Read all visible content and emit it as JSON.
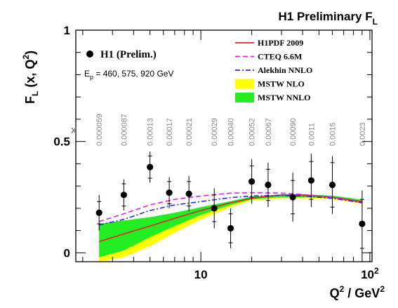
{
  "chart_data": {
    "type": "scatter",
    "title": "H1 Preliminary F",
    "title_sub": "L",
    "ylabel": {
      "main": "F",
      "sub": "L",
      "rest": " (x, Q",
      "sup": "2",
      "close": ")"
    },
    "xlabel": {
      "main": "Q",
      "sup1": "2",
      "rest": " / GeV",
      "sup2": "2"
    },
    "x_scale": "log",
    "xlim": [
      1.82,
      103
    ],
    "ylim": [
      -0.04,
      1.0
    ],
    "y_ticks": [
      {
        "value": 0,
        "label": "0"
      },
      {
        "value": 0.5,
        "label": "0.5"
      },
      {
        "value": 1,
        "label": "1"
      }
    ],
    "x_tick_labels": [
      {
        "value": 10,
        "label": "10"
      },
      {
        "value": 100,
        "label": "10",
        "sup": "2"
      }
    ],
    "x_major_ticks": [
      10,
      100
    ],
    "x_minor_ticks": [
      2,
      3,
      4,
      5,
      6,
      7,
      8,
      9,
      20,
      30,
      40,
      50,
      60,
      70,
      80,
      90
    ],
    "x_values_header": "x",
    "legend_placement": "top-right",
    "legend": [
      {
        "name": "H1PDF 2009",
        "style": "line",
        "color": "#e8202a",
        "dash": ""
      },
      {
        "name": "CTEQ 6.6M",
        "style": "line",
        "color": "#e020d8",
        "dash": "7,4"
      },
      {
        "name": "Alekhin NNLO",
        "style": "line",
        "color": "#2a2ad0",
        "dash": "7,3,2,3"
      },
      {
        "name": "MSTW NLO",
        "style": "band",
        "color": "#ffff00"
      },
      {
        "name": "MSTW NNLO",
        "style": "band",
        "color": "#22ee22"
      }
    ],
    "data_legend": {
      "label": "H1 (Prelim.)"
    },
    "energy_note": {
      "main": "E",
      "sub": "p",
      "rest": " = 460, 575, 920 GeV"
    },
    "series": [
      {
        "name": "H1 (Prelim.)",
        "points": [
          {
            "q2": 2.5,
            "x": "0.000059",
            "fl": 0.18,
            "stat": 0.05,
            "tot": 0.08
          },
          {
            "q2": 3.5,
            "x": "0.000087",
            "fl": 0.26,
            "stat": 0.05,
            "tot": 0.07
          },
          {
            "q2": 5.0,
            "x": "0.00013",
            "fl": 0.385,
            "stat": 0.05,
            "tot": 0.07
          },
          {
            "q2": 6.5,
            "x": "0.00017",
            "fl": 0.27,
            "stat": 0.05,
            "tot": 0.07
          },
          {
            "q2": 8.5,
            "x": "0.00021",
            "fl": 0.265,
            "stat": 0.055,
            "tot": 0.08
          },
          {
            "q2": 12.0,
            "x": "0.00029",
            "fl": 0.2,
            "stat": 0.06,
            "tot": 0.09
          },
          {
            "q2": 15.0,
            "x": "0.00040",
            "fl": 0.11,
            "stat": 0.065,
            "tot": 0.09
          },
          {
            "q2": 20.0,
            "x": "0.00052",
            "fl": 0.32,
            "stat": 0.07,
            "tot": 0.1
          },
          {
            "q2": 25.0,
            "x": "0.00067",
            "fl": 0.305,
            "stat": 0.07,
            "tot": 0.1
          },
          {
            "q2": 35.0,
            "x": "0.00090",
            "fl": 0.25,
            "stat": 0.075,
            "tot": 0.11
          },
          {
            "q2": 45.0,
            "x": "0.0011",
            "fl": 0.325,
            "stat": 0.085,
            "tot": 0.12
          },
          {
            "q2": 60.0,
            "x": "0.0015",
            "fl": 0.305,
            "stat": 0.1,
            "tot": 0.13
          },
          {
            "q2": 90.0,
            "x": "0.0023",
            "fl": 0.13,
            "stat": 0.11,
            "tot": 0.15
          }
        ]
      }
    ],
    "curves": [
      {
        "name": "H1PDF 2009",
        "q2": [
          2.5,
          3.5,
          5,
          7,
          10,
          15,
          20,
          30,
          40,
          60,
          90
        ],
        "fl": [
          0.05,
          0.085,
          0.12,
          0.155,
          0.19,
          0.225,
          0.245,
          0.26,
          0.26,
          0.25,
          0.23
        ]
      },
      {
        "name": "CTEQ 6.6M",
        "q2": [
          2.5,
          3.5,
          5,
          7,
          10,
          15,
          20,
          30,
          40,
          60,
          90
        ],
        "fl": [
          0.14,
          0.175,
          0.215,
          0.24,
          0.255,
          0.268,
          0.27,
          0.268,
          0.262,
          0.25,
          0.225
        ]
      },
      {
        "name": "Alekhin NNLO",
        "q2": [
          2.5,
          3.5,
          5,
          7,
          10,
          15,
          20,
          30,
          40,
          60,
          90
        ],
        "fl": [
          0.125,
          0.15,
          0.19,
          0.215,
          0.23,
          0.248,
          0.255,
          0.258,
          0.255,
          0.245,
          0.225
        ]
      }
    ],
    "bands": [
      {
        "name": "MSTW NLO",
        "q2": [
          2.5,
          3.5,
          5,
          7,
          10,
          15,
          20,
          30,
          40,
          60,
          90
        ],
        "lower": [
          -0.04,
          -0.02,
          0.03,
          0.09,
          0.15,
          0.205,
          0.235,
          0.245,
          0.245,
          0.24,
          0.22
        ],
        "upper": [
          0.12,
          0.135,
          0.15,
          0.17,
          0.2,
          0.23,
          0.25,
          0.26,
          0.26,
          0.255,
          0.235
        ]
      },
      {
        "name": "MSTW NNLO",
        "q2": [
          2.5,
          3.5,
          5,
          7,
          10,
          15,
          20,
          30,
          40,
          60,
          90
        ],
        "lower": [
          -0.02,
          0.01,
          0.07,
          0.12,
          0.17,
          0.215,
          0.24,
          0.25,
          0.25,
          0.245,
          0.225
        ],
        "upper": [
          0.13,
          0.145,
          0.16,
          0.18,
          0.205,
          0.232,
          0.252,
          0.262,
          0.262,
          0.257,
          0.238
        ]
      }
    ]
  }
}
